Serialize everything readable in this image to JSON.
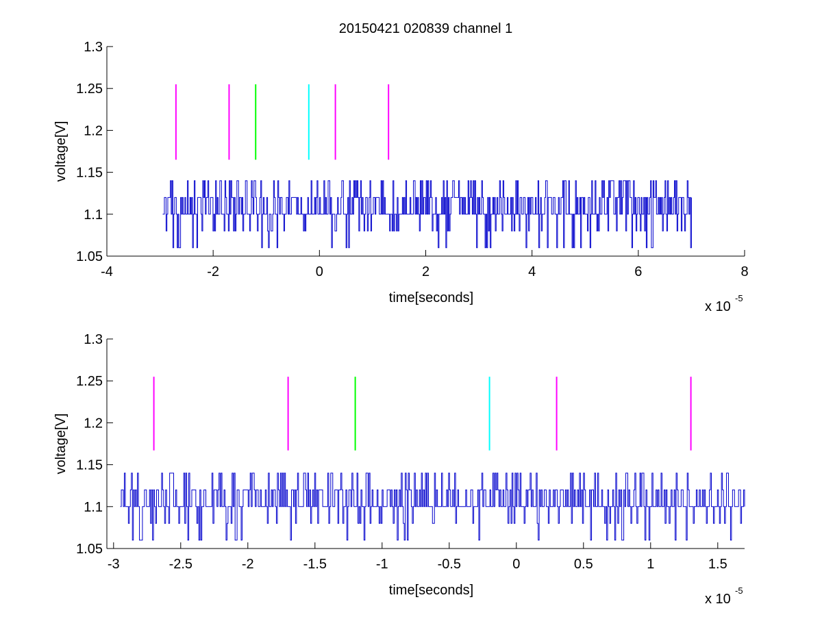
{
  "chart_data": [
    {
      "type": "line",
      "title": "20150421 020839 channel 1",
      "xlabel": "time[seconds]",
      "ylabel": "voltage[V]",
      "x_multiplier_text": "x 10",
      "x_multiplier_exponent": "-5",
      "xlim": [
        -4,
        8
      ],
      "ylim": [
        1.05,
        1.3
      ],
      "xticks": [
        -4,
        -2,
        0,
        2,
        4,
        6,
        8
      ],
      "xtick_labels": [
        "-4",
        "-2",
        "0",
        "2",
        "4",
        "6",
        "8"
      ],
      "yticks": [
        1.05,
        1.1,
        1.15,
        1.2,
        1.25,
        1.3
      ],
      "ytick_labels": [
        "1.05",
        "1.1",
        "1.15",
        "1.2",
        "1.25",
        "1.3"
      ],
      "grid": false,
      "signal": {
        "color": "#0000cc",
        "x_range": [
          -2.95,
          7.0
        ],
        "levels": [
          1.06,
          1.08,
          1.1,
          1.12,
          1.14
        ],
        "baseline": 1.1
      },
      "markers": [
        {
          "x": -2.7,
          "y_range": [
            1.165,
            1.255
          ],
          "color": "#ff00ff"
        },
        {
          "x": -1.7,
          "y_range": [
            1.165,
            1.255
          ],
          "color": "#ff00ff"
        },
        {
          "x": -1.2,
          "y_range": [
            1.165,
            1.255
          ],
          "color": "#00ff00"
        },
        {
          "x": -0.2,
          "y_range": [
            1.165,
            1.255
          ],
          "color": "#00ffff"
        },
        {
          "x": 0.3,
          "y_range": [
            1.165,
            1.255
          ],
          "color": "#ff00ff"
        },
        {
          "x": 1.3,
          "y_range": [
            1.165,
            1.255
          ],
          "color": "#ff00ff"
        }
      ]
    },
    {
      "type": "line",
      "title": "",
      "xlabel": "time[seconds]",
      "ylabel": "voltage[V]",
      "x_multiplier_text": "x 10",
      "x_multiplier_exponent": "-5",
      "xlim": [
        -3.05,
        1.7
      ],
      "ylim": [
        1.05,
        1.3
      ],
      "xticks": [
        -3,
        -2.5,
        -2,
        -1.5,
        -1,
        -0.5,
        0,
        0.5,
        1,
        1.5
      ],
      "xtick_labels": [
        "-3",
        "-2.5",
        "-2",
        "-1.5",
        "-1",
        "-0.5",
        "0",
        "0.5",
        "1",
        "1.5"
      ],
      "yticks": [
        1.05,
        1.1,
        1.15,
        1.2,
        1.25,
        1.3
      ],
      "ytick_labels": [
        "1.05",
        "1.1",
        "1.15",
        "1.2",
        "1.25",
        "1.3"
      ],
      "grid": false,
      "signal": {
        "color": "#0000cc",
        "x_range": [
          -2.95,
          1.7
        ],
        "levels": [
          1.06,
          1.08,
          1.1,
          1.12,
          1.14
        ],
        "baseline": 1.1
      },
      "markers": [
        {
          "x": -2.7,
          "y_range": [
            1.167,
            1.255
          ],
          "color": "#ff00ff"
        },
        {
          "x": -1.7,
          "y_range": [
            1.167,
            1.255
          ],
          "color": "#ff00ff"
        },
        {
          "x": -1.2,
          "y_range": [
            1.167,
            1.255
          ],
          "color": "#00ff00"
        },
        {
          "x": -0.2,
          "y_range": [
            1.167,
            1.255
          ],
          "color": "#00ffff"
        },
        {
          "x": 0.3,
          "y_range": [
            1.167,
            1.255
          ],
          "color": "#ff00ff"
        },
        {
          "x": 1.3,
          "y_range": [
            1.167,
            1.255
          ],
          "color": "#ff00ff"
        }
      ]
    }
  ]
}
